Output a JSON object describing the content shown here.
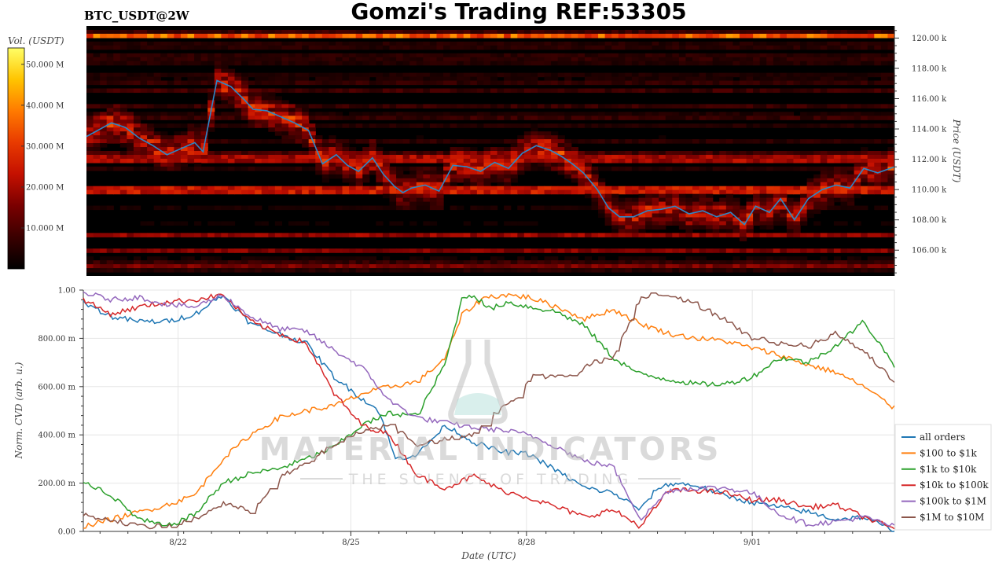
{
  "title": "Gomzi's Trading REF:53305",
  "symbol_label": "BTC_USDT@2W",
  "watermark": {
    "main": "MATERIAL INDICATORS",
    "sub": "THE SCIENCE OF TRADING"
  },
  "colors": {
    "heatmap": [
      "#000000",
      "#3a0000",
      "#7a0000",
      "#c41000",
      "#e83a00",
      "#ff7a00",
      "#ffc400",
      "#ffff66"
    ],
    "price_line": "#2b88c8",
    "panel_bg": "#000000",
    "grid": "#e6e6e6"
  },
  "chart_data": [
    {
      "type": "heatmap",
      "ylabel": "Price (USDT)",
      "colorbar_label": "Vol. (USDT)",
      "colorbar_ticks": [
        "10.000 M",
        "20.000 M",
        "30.000 M",
        "40.000 M",
        "50.000 M"
      ],
      "colorbar_range": [
        0,
        54
      ],
      "ylim": [
        104.3,
        120.8
      ],
      "xlim": [
        0,
        14.55
      ],
      "y_ticks": [
        106,
        108,
        110,
        112,
        114,
        116,
        118,
        120
      ],
      "y_tick_labels": [
        "106.00 k",
        "108.00 k",
        "110.00 k",
        "112.00 k",
        "114.00 k",
        "116.00 k",
        "118.00 k",
        "120.00 k"
      ],
      "price_series": {
        "x": [
          0,
          0.2,
          0.45,
          0.7,
          0.95,
          1.2,
          1.45,
          1.7,
          1.95,
          2.1,
          2.35,
          2.6,
          2.85,
          3.0,
          3.25,
          3.5,
          3.75,
          4.0,
          4.25,
          4.5,
          4.7,
          4.9,
          5.15,
          5.35,
          5.55,
          5.7,
          5.85,
          6.1,
          6.35,
          6.6,
          6.85,
          7.1,
          7.35,
          7.6,
          7.85,
          8.1,
          8.35,
          8.55,
          8.75,
          8.95,
          9.2,
          9.4,
          9.6,
          9.85,
          10.1,
          10.35,
          10.6,
          10.85,
          11.1,
          11.35,
          11.6,
          11.85,
          12.05,
          12.3,
          12.5,
          12.75,
          13.0,
          13.25,
          13.5,
          13.75,
          14.0,
          14.25,
          14.55
        ],
        "y": [
          113.5,
          113.9,
          114.4,
          114.1,
          113.4,
          112.9,
          112.3,
          112.7,
          113.1,
          112.5,
          117.2,
          116.8,
          115.9,
          115.3,
          115.2,
          114.8,
          114.4,
          113.9,
          111.7,
          112.3,
          111.6,
          111.2,
          112.1,
          111.0,
          110.2,
          109.8,
          110.1,
          110.3,
          109.9,
          111.6,
          111.5,
          111.2,
          111.8,
          111.4,
          112.4,
          112.9,
          112.6,
          112.2,
          111.7,
          111.1,
          110.0,
          108.8,
          108.2,
          108.2,
          108.6,
          108.7,
          108.9,
          108.4,
          108.6,
          108.2,
          108.5,
          107.7,
          108.9,
          108.5,
          109.4,
          108.0,
          109.4,
          110.0,
          110.3,
          110.1,
          111.4,
          111.1,
          111.5
        ]
      },
      "horizontal_walls": [
        {
          "price": 120.2,
          "volume": 34
        },
        {
          "price": 110.0,
          "volume": 24
        },
        {
          "price": 112.0,
          "volume": 20
        },
        {
          "price": 107.0,
          "volume": 18
        },
        {
          "price": 106.0,
          "volume": 16
        },
        {
          "price": 105.0,
          "volume": 15
        }
      ]
    },
    {
      "type": "line",
      "xlabel": "Date (UTC)",
      "ylabel": "Norm. CVD (arb. u.)",
      "ylim": [
        0,
        1
      ],
      "xlim": [
        0,
        14.55
      ],
      "x_ticks": [
        1.7,
        4.8,
        7.95,
        12.0
      ],
      "x_tick_labels": [
        "8/22",
        "8/25",
        "8/28",
        "9/01"
      ],
      "y_ticks": [
        0,
        0.2,
        0.4,
        0.6,
        0.8,
        1.0
      ],
      "y_tick_labels": [
        "0.00",
        "200.00 m",
        "400.00 m",
        "600.00 m",
        "800.00 m",
        "1.00"
      ],
      "grid": true,
      "legend_position": "right",
      "series": [
        {
          "name": "all orders",
          "color": "#1f77b4",
          "x": [
            0,
            0.5,
            1.0,
            1.5,
            2.0,
            2.5,
            3.0,
            3.5,
            4.0,
            4.5,
            5.0,
            5.3,
            5.6,
            6.0,
            6.5,
            7.0,
            7.5,
            8.0,
            8.5,
            9.0,
            9.5,
            10.0,
            10.3,
            10.6,
            11.0,
            11.5,
            12.0,
            12.5,
            13.0,
            13.5,
            14.0,
            14.55
          ],
          "y": [
            0.95,
            0.89,
            0.87,
            0.87,
            0.9,
            0.98,
            0.86,
            0.82,
            0.78,
            0.64,
            0.55,
            0.5,
            0.3,
            0.32,
            0.44,
            0.37,
            0.33,
            0.32,
            0.25,
            0.18,
            0.16,
            0.09,
            0.18,
            0.2,
            0.19,
            0.15,
            0.12,
            0.1,
            0.08,
            0.05,
            0.06,
            0.0
          ]
        },
        {
          "name": "$100 to $1k",
          "color": "#ff7f0e",
          "x": [
            0,
            0.5,
            1.0,
            1.5,
            2.0,
            2.5,
            3.0,
            3.5,
            4.0,
            4.5,
            5.0,
            5.5,
            6.0,
            6.5,
            6.8,
            7.2,
            7.6,
            8.0,
            8.5,
            9.0,
            9.5,
            10.0,
            10.5,
            11.0,
            11.5,
            12.0,
            12.5,
            13.0,
            13.5,
            14.0,
            14.55
          ],
          "y": [
            0.02,
            0.05,
            0.08,
            0.11,
            0.15,
            0.3,
            0.4,
            0.47,
            0.5,
            0.52,
            0.57,
            0.6,
            0.62,
            0.72,
            0.9,
            0.97,
            0.98,
            0.97,
            0.93,
            0.88,
            0.92,
            0.86,
            0.82,
            0.8,
            0.79,
            0.76,
            0.73,
            0.69,
            0.66,
            0.6,
            0.51
          ]
        },
        {
          "name": "$1k to $10k",
          "color": "#2ca02c",
          "x": [
            0,
            0.5,
            1.0,
            1.5,
            2.0,
            2.5,
            3.0,
            3.5,
            4.0,
            4.5,
            5.0,
            5.5,
            6.0,
            6.5,
            6.8,
            7.0,
            7.3,
            7.6,
            8.0,
            8.5,
            9.0,
            9.5,
            10.0,
            10.5,
            11.0,
            11.5,
            12.0,
            12.5,
            13.0,
            13.5,
            14.0,
            14.55
          ],
          "y": [
            0.21,
            0.15,
            0.05,
            0.02,
            0.07,
            0.2,
            0.24,
            0.26,
            0.3,
            0.35,
            0.44,
            0.49,
            0.48,
            0.7,
            0.97,
            0.98,
            0.92,
            0.95,
            0.93,
            0.91,
            0.85,
            0.72,
            0.65,
            0.63,
            0.61,
            0.61,
            0.64,
            0.72,
            0.7,
            0.77,
            0.87,
            0.69
          ]
        },
        {
          "name": "$10k to $100k",
          "color": "#d62728",
          "x": [
            0,
            0.5,
            1.0,
            1.5,
            2.0,
            2.5,
            3.0,
            3.5,
            4.0,
            4.5,
            5.0,
            5.5,
            6.0,
            6.5,
            7.0,
            7.5,
            8.0,
            8.5,
            9.0,
            9.5,
            10.0,
            10.5,
            11.0,
            11.5,
            12.0,
            12.5,
            13.0,
            13.5,
            14.0,
            14.55
          ],
          "y": [
            0.96,
            0.9,
            0.93,
            0.95,
            0.96,
            0.98,
            0.87,
            0.82,
            0.78,
            0.57,
            0.44,
            0.4,
            0.23,
            0.18,
            0.23,
            0.17,
            0.14,
            0.1,
            0.06,
            0.09,
            0.02,
            0.17,
            0.17,
            0.16,
            0.13,
            0.13,
            0.1,
            0.11,
            0.06,
            0.01
          ]
        },
        {
          "name": "$100k to $1M",
          "color": "#9467bd",
          "x": [
            0,
            0.5,
            1.0,
            1.5,
            2.0,
            2.5,
            3.0,
            3.5,
            4.0,
            4.5,
            5.0,
            5.5,
            6.0,
            6.5,
            7.0,
            7.5,
            8.0,
            8.5,
            9.0,
            9.5,
            10.0,
            10.5,
            11.0,
            11.5,
            12.0,
            12.5,
            13.0,
            13.5,
            14.0,
            14.55
          ],
          "y": [
            0.99,
            0.96,
            0.97,
            0.94,
            0.93,
            0.98,
            0.89,
            0.84,
            0.83,
            0.75,
            0.68,
            0.54,
            0.47,
            0.45,
            0.43,
            0.42,
            0.4,
            0.35,
            0.29,
            0.27,
            0.05,
            0.17,
            0.18,
            0.18,
            0.16,
            0.07,
            0.03,
            0.04,
            0.06,
            0.02
          ]
        },
        {
          "name": "$1M to $10M",
          "color": "#8c564b",
          "x": [
            0,
            0.5,
            1.0,
            1.5,
            2.0,
            2.5,
            3.0,
            3.5,
            4.0,
            4.5,
            5.0,
            5.5,
            6.0,
            6.5,
            7.0,
            7.5,
            7.8,
            8.0,
            8.3,
            8.6,
            8.9,
            9.0,
            9.5,
            10.0,
            10.3,
            10.6,
            11.0,
            11.5,
            12.0,
            12.5,
            13.0,
            13.5,
            14.0,
            14.55
          ],
          "y": [
            0.07,
            0.05,
            0.02,
            0.02,
            0.05,
            0.12,
            0.08,
            0.22,
            0.28,
            0.36,
            0.42,
            0.44,
            0.36,
            0.38,
            0.4,
            0.52,
            0.55,
            0.64,
            0.64,
            0.64,
            0.66,
            0.69,
            0.72,
            0.97,
            0.99,
            0.97,
            0.94,
            0.88,
            0.8,
            0.78,
            0.77,
            0.82,
            0.75,
            0.62
          ]
        }
      ]
    }
  ]
}
